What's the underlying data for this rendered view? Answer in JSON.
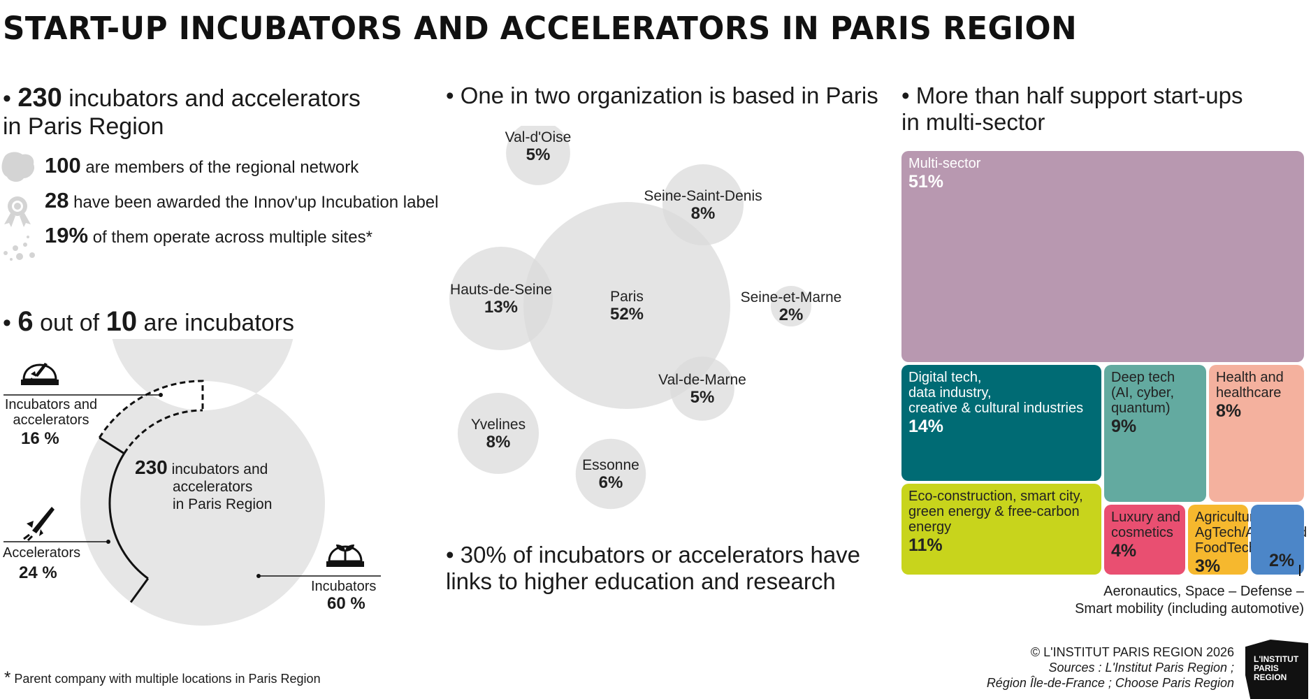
{
  "title": "START-UP INCUBATORS AND ACCELERATORS IN PARIS REGION",
  "left": {
    "heading_bullet": "•",
    "heading_number": "230",
    "heading_text1": "incubators and accelerators",
    "heading_text2": "in Paris Region",
    "items": [
      {
        "icon": "region-map-icon",
        "number": "100",
        "text": "are members of the regional network"
      },
      {
        "icon": "award-ribbon-icon",
        "number": "28",
        "text": "have been awarded the Innov'up Incubation label"
      },
      {
        "icon": "scattered-dots-icon",
        "number": "19%",
        "text": "of them operate across multiple sites*"
      }
    ]
  },
  "donut_section": {
    "heading_bullet": "•",
    "heading_num1": "6",
    "heading_mid": "out of",
    "heading_num2": "10",
    "heading_end": "are incubators",
    "center_number": "230",
    "center_line1": "incubators and",
    "center_line2": "accelerators",
    "center_line3": "in Paris Region",
    "labels": {
      "both_line1": "Incubators and",
      "both_line2": "accelerators",
      "both_value": "16 %",
      "acc_line1": "Accelerators",
      "acc_value": "24 %",
      "inc_line1": "Incubators",
      "inc_value": "60 %"
    }
  },
  "middle": {
    "heading": "• One in two organization is based in Paris",
    "bottom_line1": "• 30% of incubators or accelerators have",
    "bottom_line2": "links to higher education and research"
  },
  "right": {
    "heading_line1": "• More than half support start-ups",
    "heading_line2": "in multi-sector",
    "aero_line1": "Aeronautics, Space – Defense –",
    "aero_line2": "Smart mobility (including automotive)"
  },
  "footer": {
    "note": "Parent company with multiple locations in Paris Region",
    "note_star": "*",
    "copyright": "© L'INSTITUT PARIS REGION 2026",
    "sources1": "Sources : L'Institut Paris Region ;",
    "sources2": "Région Île-de-France ; Choose Paris Region",
    "logo_l1": "L'INSTITUT",
    "logo_l2": "PARIS",
    "logo_l3": "REGION"
  },
  "colors": {
    "multi": "#b898b0",
    "digital": "#006b74",
    "deeptech": "#63aaa0",
    "health": "#f4b19e",
    "eco": "#c8d41c",
    "luxury": "#e94f71",
    "agri": "#f6b82e",
    "aero": "#4c86c8",
    "bubble": "#d9d9d9",
    "donut": "#e6e6e6"
  },
  "chart_data": [
    {
      "type": "pie",
      "title": "6 out of 10 are incubators",
      "series": [
        {
          "name": "Incubators",
          "value": 60
        },
        {
          "name": "Accelerators",
          "value": 24
        },
        {
          "name": "Incubators and accelerators",
          "value": 16
        }
      ]
    },
    {
      "type": "scatter",
      "title": "One in two organization is based in Paris",
      "series": [
        {
          "name": "Paris",
          "label": "52%",
          "value": 52
        },
        {
          "name": "Hauts-de-Seine",
          "label": "13%",
          "value": 13
        },
        {
          "name": "Seine-Saint-Denis",
          "label": "8%",
          "value": 8
        },
        {
          "name": "Yvelines",
          "label": "8%",
          "value": 8
        },
        {
          "name": "Essonne",
          "label": "6%",
          "value": 6
        },
        {
          "name": "Val-d'Oise",
          "label": "5%",
          "value": 5
        },
        {
          "name": "Val-de-Marne",
          "label": "5%",
          "value": 5
        },
        {
          "name": "Seine-et-Marne",
          "label": "2%",
          "value": 2
        }
      ]
    },
    {
      "type": "heatmap",
      "title": "More than half support start-ups in multi-sector",
      "series": [
        {
          "name": "Multi-sector",
          "lines": [
            "Multi-sector"
          ],
          "label": "51%",
          "value": 51
        },
        {
          "name": "Digital tech, data industry, creative & cultural industries",
          "lines": [
            "Digital tech,",
            "data industry,",
            "creative & cultural industries"
          ],
          "label": "14%",
          "value": 14
        },
        {
          "name": "Deep tech (AI, cyber, quantum)",
          "lines": [
            "Deep tech",
            "(AI, cyber,",
            "quantum)"
          ],
          "label": "9%",
          "value": 9
        },
        {
          "name": "Health and healthcare",
          "lines": [
            "Health and",
            "healthcare"
          ],
          "label": "8%",
          "value": 8
        },
        {
          "name": "Eco-construction, smart city, green energy & free-carbon energy",
          "lines": [
            "Eco-construction, smart city,",
            "green energy & free-carbon",
            "energy"
          ],
          "label": "11%",
          "value": 11
        },
        {
          "name": "Luxury and cosmetics",
          "lines": [
            "Luxury and",
            "cosmetics"
          ],
          "label": "4%",
          "value": 4
        },
        {
          "name": "Agriculture, AgTech/Agri-Food, FoodTech",
          "lines": [
            "Agriculture,",
            "AgTech/Agri-Food,",
            "FoodTech"
          ],
          "label": "3%",
          "value": 3
        },
        {
          "name": "Aeronautics, Space – Defense – Smart mobility (including automotive)",
          "lines": [],
          "label": "2%",
          "value": 2
        }
      ]
    }
  ]
}
